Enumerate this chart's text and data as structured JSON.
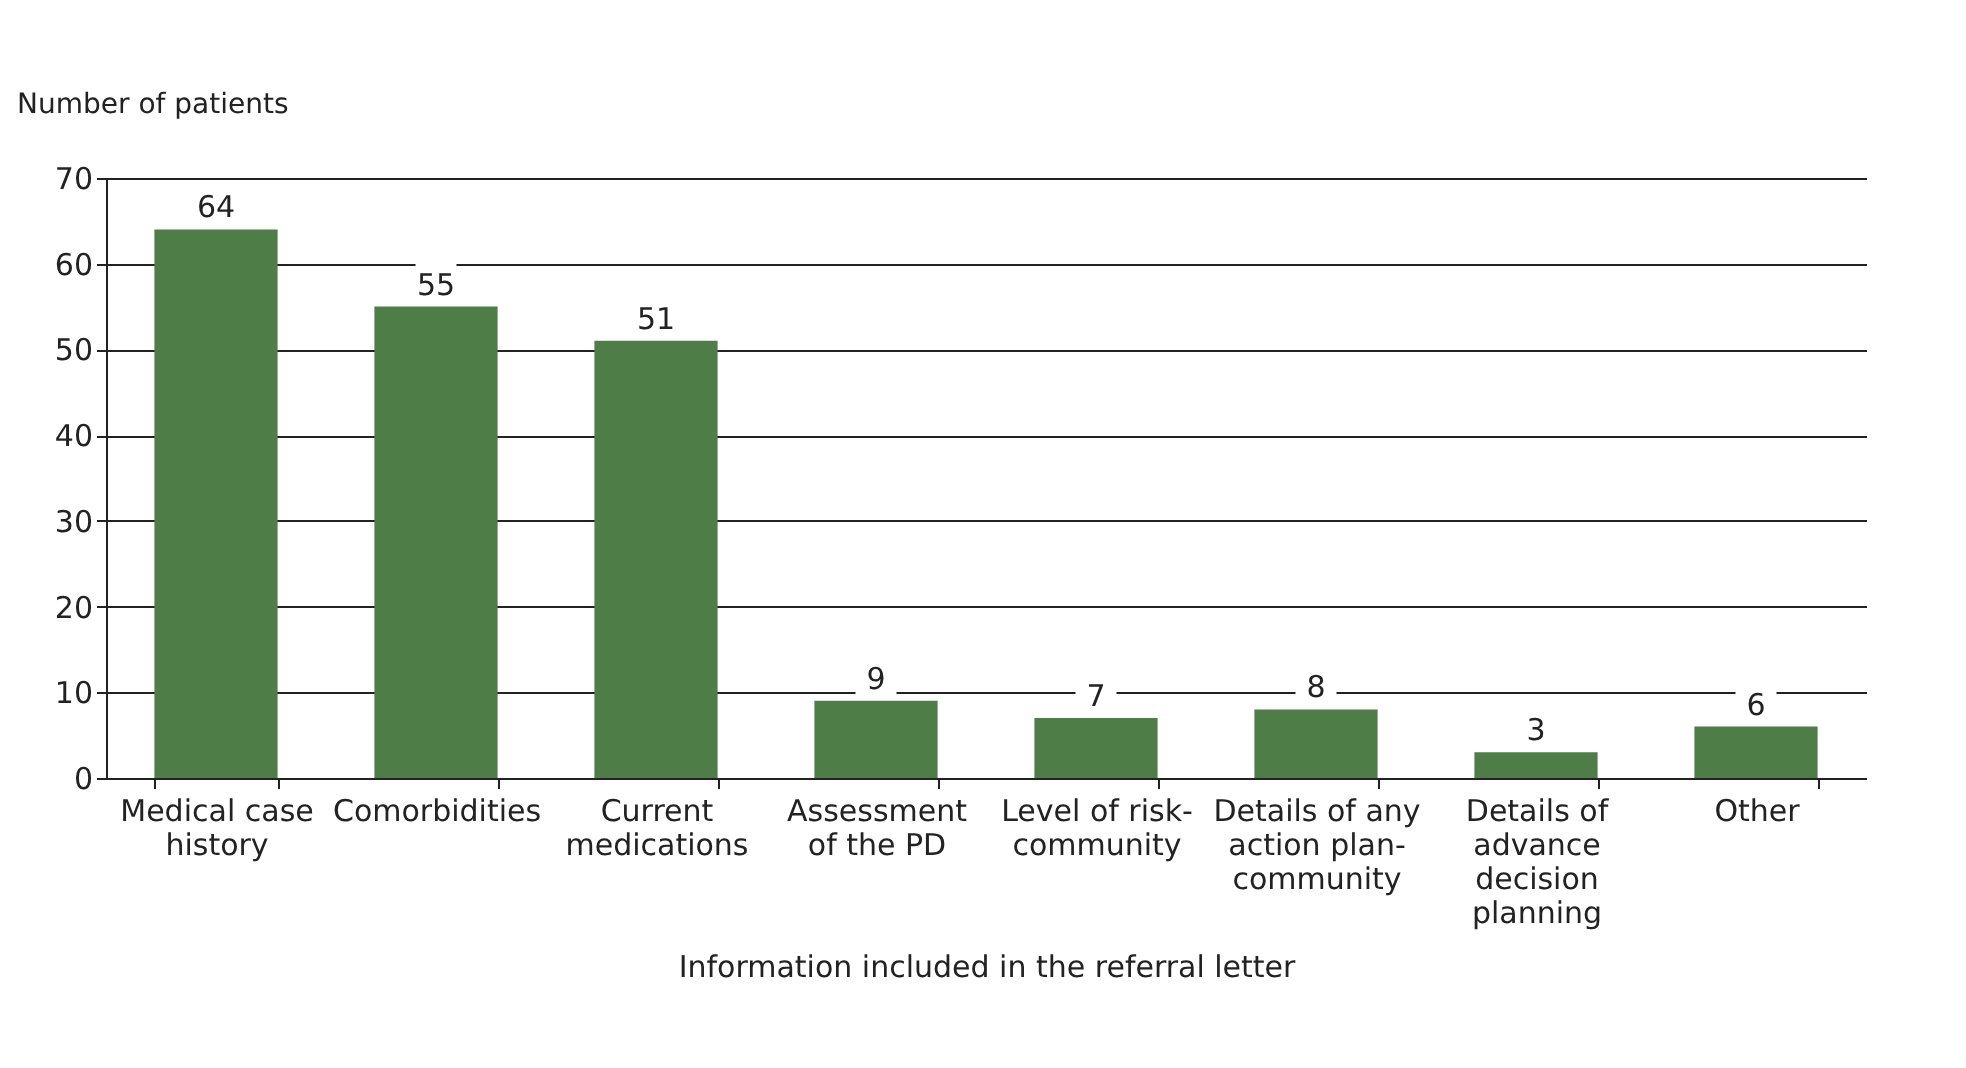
{
  "chart_data": {
    "type": "bar",
    "xlabel": "Information included in the referral letter",
    "ylabel": "Number of patients",
    "categories": [
      "Medical case\nhistory",
      "Comorbidities",
      "Current\nmedications",
      "Assessment\nof the PD",
      "Level of risk-\ncommunity",
      "Details of any\naction plan-\ncommunity",
      "Details of\nadvance\ndecision\nplanning",
      "Other"
    ],
    "values": [
      64,
      55,
      51,
      9,
      7,
      8,
      3,
      6
    ],
    "color": "#4e7d48",
    "ylim": [
      0,
      70
    ],
    "yticks": [
      0,
      10,
      20,
      30,
      40,
      50,
      60,
      70
    ],
    "grid": "y",
    "data_labels": true
  }
}
